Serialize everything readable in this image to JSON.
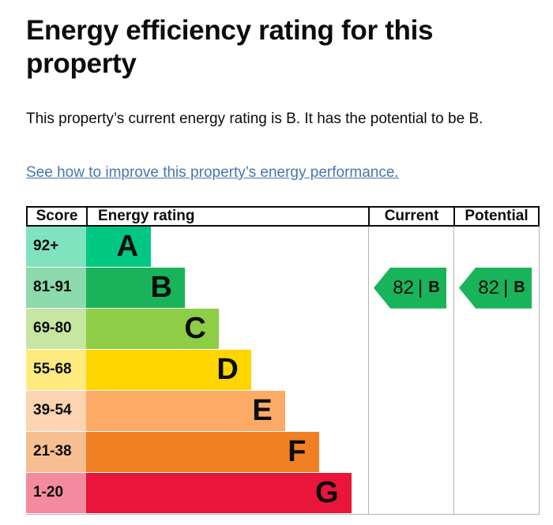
{
  "page": {
    "title": "Energy efficiency rating for this property",
    "summary": "This property’s current energy rating is B. It has the potential to be B.",
    "improve_link": "See how to improve this property’s energy performance."
  },
  "colors": {
    "text": "#0b0c0c",
    "link": "#4677ae",
    "grid": "#b1b4b6",
    "marker": "#19b459"
  },
  "chart_data": {
    "type": "bar",
    "orientation": "horizontal",
    "columns": [
      "Score",
      "Energy rating",
      "Current",
      "Potential"
    ],
    "bands": [
      {
        "letter": "A",
        "score_range": "92+",
        "width_pct": 23,
        "color": "#00c781",
        "score_cell_color": "#80e3c0"
      },
      {
        "letter": "B",
        "score_range": "81-91",
        "width_pct": 35,
        "color": "#19b459",
        "score_cell_color": "#8cd9ac"
      },
      {
        "letter": "C",
        "score_range": "69-80",
        "width_pct": 47,
        "color": "#8dce46",
        "score_cell_color": "#c6e6a2"
      },
      {
        "letter": "D",
        "score_range": "55-68",
        "width_pct": 58.5,
        "color": "#ffd500",
        "score_cell_color": "#ffea80"
      },
      {
        "letter": "E",
        "score_range": "39-54",
        "width_pct": 70.5,
        "color": "#fcaa65",
        "score_cell_color": "#fdd4b2"
      },
      {
        "letter": "F",
        "score_range": "21-38",
        "width_pct": 82.5,
        "color": "#ef8023",
        "score_cell_color": "#f7bf91"
      },
      {
        "letter": "G",
        "score_range": "1-20",
        "width_pct": 94,
        "color": "#e9153b",
        "score_cell_color": "#f48a9d"
      }
    ],
    "current": {
      "score": "82",
      "band": "B"
    },
    "potential": {
      "score": "82",
      "band": "B"
    },
    "value_divider": "|"
  }
}
